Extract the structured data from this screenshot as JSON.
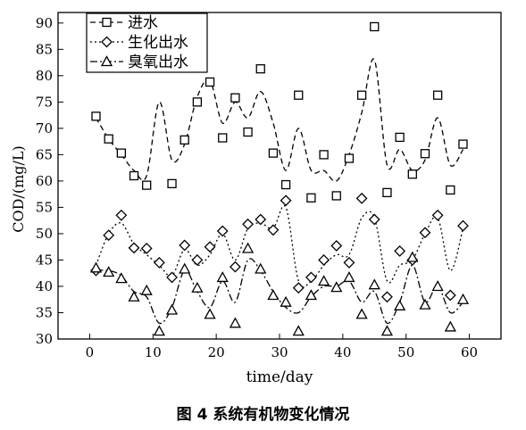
{
  "caption": "图 4  系统有机物变化情况",
  "chart_data": {
    "type": "scatter",
    "xlabel": "time/day",
    "ylabel": "COD/(mg/L)",
    "xlim": [
      -5,
      65
    ],
    "ylim": [
      30,
      92
    ],
    "xticks": [
      0,
      10,
      20,
      30,
      40,
      50,
      60
    ],
    "yticks": [
      30,
      35,
      40,
      45,
      50,
      55,
      60,
      65,
      70,
      75,
      80,
      85,
      90
    ],
    "legend_position": "top-left",
    "series": [
      {
        "name": "进水",
        "marker": "square",
        "line_style": "dash",
        "x": [
          1,
          3,
          5,
          7,
          9,
          13,
          15,
          17,
          19,
          21,
          23,
          25,
          27,
          29,
          31,
          33,
          35,
          37,
          39,
          41,
          43,
          45,
          47,
          49,
          51,
          53,
          55,
          57,
          59
        ],
        "y": [
          72.3,
          68.0,
          65.3,
          61.0,
          59.2,
          59.5,
          67.8,
          75.0,
          78.8,
          68.2,
          75.8,
          69.3,
          81.3,
          65.3,
          59.3,
          76.3,
          56.8,
          65.0,
          57.2,
          64.3,
          76.3,
          89.3,
          57.8,
          68.3,
          61.3,
          65.2,
          76.3,
          58.3,
          67.0
        ],
        "curve": [
          [
            1,
            72
          ],
          [
            3,
            68
          ],
          [
            5,
            65
          ],
          [
            7,
            62
          ],
          [
            9,
            61
          ],
          [
            11,
            75
          ],
          [
            13,
            64
          ],
          [
            15,
            67
          ],
          [
            17,
            76
          ],
          [
            19,
            79
          ],
          [
            21,
            71
          ],
          [
            23,
            75
          ],
          [
            25,
            72
          ],
          [
            27,
            77
          ],
          [
            29,
            71
          ],
          [
            31,
            62
          ],
          [
            33,
            70
          ],
          [
            35,
            62
          ],
          [
            37,
            62
          ],
          [
            39,
            60
          ],
          [
            41,
            65
          ],
          [
            43,
            73
          ],
          [
            45,
            83
          ],
          [
            47,
            63
          ],
          [
            49,
            66
          ],
          [
            51,
            62
          ],
          [
            53,
            64
          ],
          [
            55,
            72
          ],
          [
            57,
            63
          ],
          [
            59,
            66
          ]
        ]
      },
      {
        "name": "生化出水",
        "marker": "diamond",
        "line_style": "dot",
        "x": [
          1,
          3,
          5,
          7,
          9,
          11,
          13,
          15,
          17,
          19,
          21,
          23,
          25,
          27,
          29,
          31,
          33,
          35,
          37,
          39,
          41,
          43,
          45,
          47,
          49,
          51,
          53,
          55,
          57,
          59
        ],
        "y": [
          43.0,
          49.7,
          53.5,
          47.3,
          47.2,
          44.5,
          41.7,
          47.8,
          45.0,
          47.5,
          50.5,
          43.7,
          51.8,
          52.7,
          50.7,
          56.3,
          39.7,
          41.7,
          45.0,
          47.7,
          44.5,
          56.7,
          52.7,
          38.0,
          46.7,
          45.0,
          50.2,
          53.5,
          38.3,
          51.5
        ],
        "curve": [
          [
            1,
            44
          ],
          [
            3,
            50
          ],
          [
            5,
            52
          ],
          [
            7,
            48
          ],
          [
            9,
            46
          ],
          [
            11,
            44
          ],
          [
            13,
            42
          ],
          [
            15,
            47
          ],
          [
            17,
            44
          ],
          [
            19,
            46
          ],
          [
            21,
            50
          ],
          [
            23,
            45
          ],
          [
            25,
            51
          ],
          [
            27,
            52
          ],
          [
            29,
            51
          ],
          [
            31,
            55
          ],
          [
            33,
            41
          ],
          [
            35,
            41
          ],
          [
            37,
            44
          ],
          [
            39,
            46
          ],
          [
            41,
            46
          ],
          [
            43,
            53
          ],
          [
            45,
            53
          ],
          [
            47,
            41
          ],
          [
            49,
            44
          ],
          [
            51,
            45
          ],
          [
            53,
            50
          ],
          [
            55,
            53
          ],
          [
            57,
            43
          ],
          [
            59,
            51
          ]
        ]
      },
      {
        "name": "臭氧出水",
        "marker": "triangle",
        "line_style": "dashdot",
        "x": [
          1,
          3,
          5,
          7,
          9,
          11,
          13,
          15,
          17,
          19,
          21,
          23,
          25,
          27,
          29,
          31,
          33,
          35,
          37,
          39,
          41,
          43,
          45,
          47,
          49,
          51,
          53,
          55,
          57,
          59
        ],
        "y": [
          43.5,
          42.7,
          41.5,
          38.0,
          39.2,
          31.5,
          35.5,
          43.3,
          39.7,
          34.7,
          41.7,
          33.0,
          47.2,
          43.3,
          38.3,
          37.0,
          31.5,
          38.3,
          41.0,
          39.8,
          41.7,
          34.7,
          40.3,
          31.5,
          36.3,
          45.5,
          36.5,
          40.0,
          32.3,
          37.5
        ],
        "curve": [
          [
            1,
            43
          ],
          [
            3,
            43
          ],
          [
            5,
            42
          ],
          [
            7,
            39
          ],
          [
            9,
            38
          ],
          [
            11,
            33
          ],
          [
            13,
            36
          ],
          [
            15,
            43
          ],
          [
            17,
            39
          ],
          [
            19,
            36
          ],
          [
            21,
            41
          ],
          [
            23,
            37
          ],
          [
            25,
            45
          ],
          [
            27,
            43
          ],
          [
            29,
            39
          ],
          [
            31,
            36
          ],
          [
            33,
            35
          ],
          [
            35,
            38
          ],
          [
            37,
            40
          ],
          [
            39,
            40
          ],
          [
            41,
            41
          ],
          [
            43,
            37
          ],
          [
            45,
            39
          ],
          [
            47,
            33
          ],
          [
            49,
            37
          ],
          [
            51,
            44
          ],
          [
            53,
            37
          ],
          [
            55,
            40
          ],
          [
            57,
            35
          ],
          [
            59,
            37
          ]
        ]
      }
    ]
  }
}
